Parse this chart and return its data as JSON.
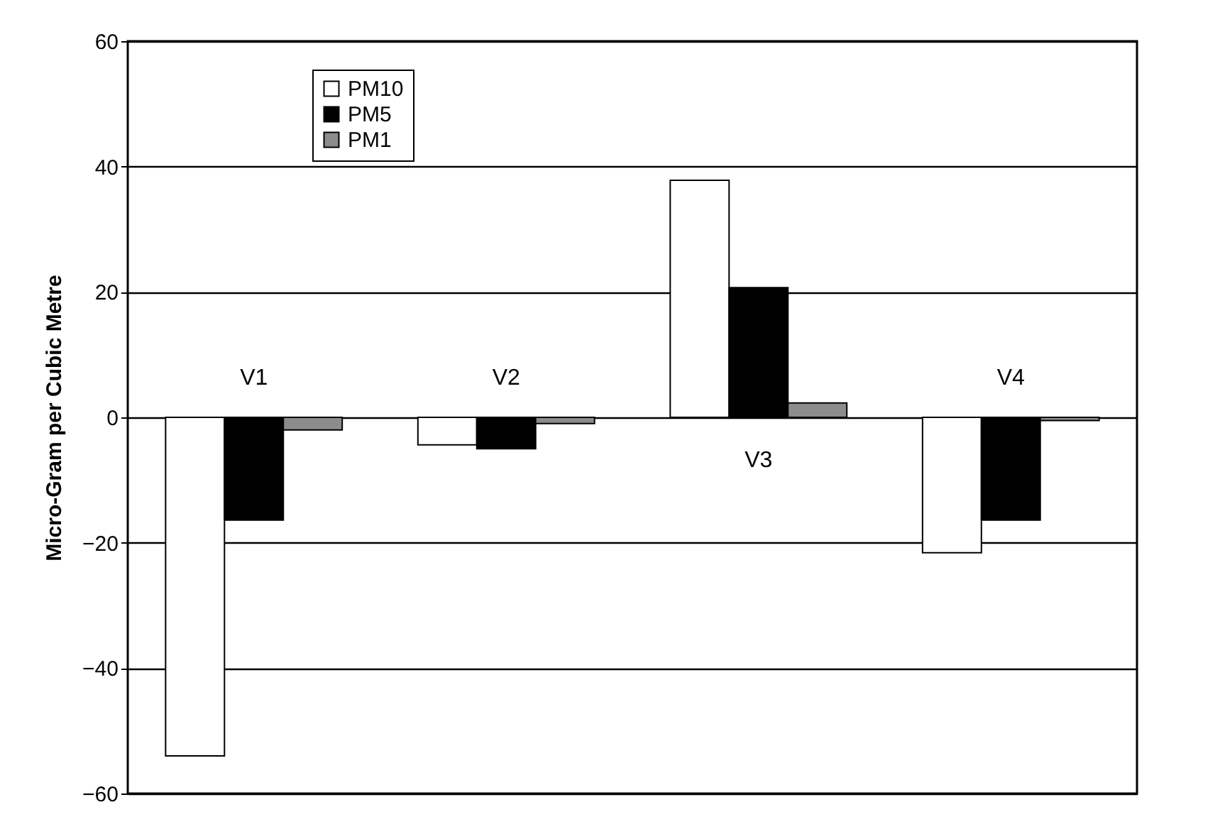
{
  "chart_data": {
    "type": "bar",
    "ylabel": "Micro-Gram per Cubic Metre",
    "categories": [
      "V1",
      "V2",
      "V3",
      "V4"
    ],
    "series": [
      {
        "name": "PM10",
        "color": "#ffffff",
        "values": [
          -54,
          -4.4,
          37.8,
          -21.6
        ]
      },
      {
        "name": "PM5",
        "color": "#000000",
        "values": [
          -16.4,
          -5,
          20.7,
          -16.4
        ]
      },
      {
        "name": "PM1",
        "color": "#8c8c8c",
        "values": [
          -2,
          -1,
          2.3,
          -0.5
        ]
      }
    ],
    "ylim": [
      -60,
      60
    ],
    "yticks": [
      -60,
      -40,
      -20,
      0,
      20,
      40,
      60
    ],
    "grid": "y",
    "legend": "top left"
  }
}
